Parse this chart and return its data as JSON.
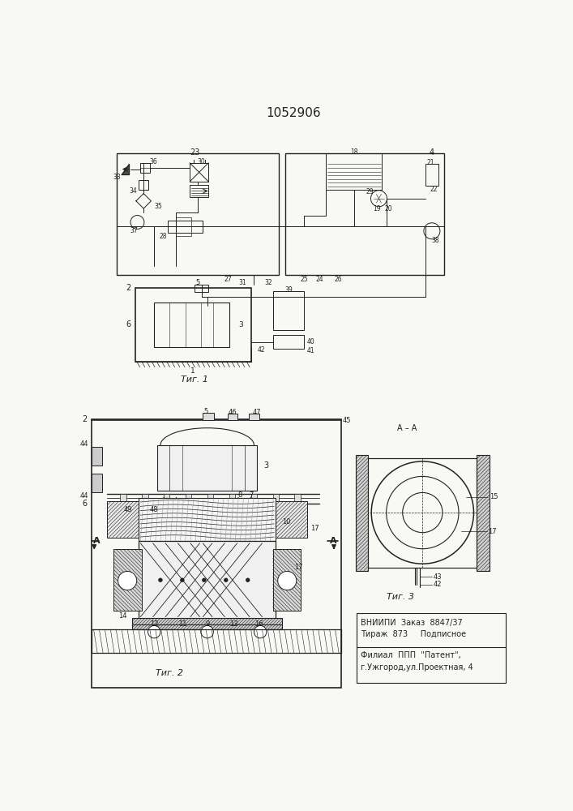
{
  "title": "1052906",
  "fig1_caption": "Τиг. 1",
  "fig2_caption": "Τиг. 2",
  "fig3_caption": "Τиг. 3",
  "vniiipi_line1": "ВНИИПИ  Заказ  8847/37",
  "vniiipi_line2": "Тираж  873     Подписное",
  "filial_line1": "Филиал  ППП  \"Патент\",",
  "filial_line2": "г.Ужгород,ул.Проектная, 4",
  "bg_color": "#f8f8f4",
  "line_color": "#222222"
}
